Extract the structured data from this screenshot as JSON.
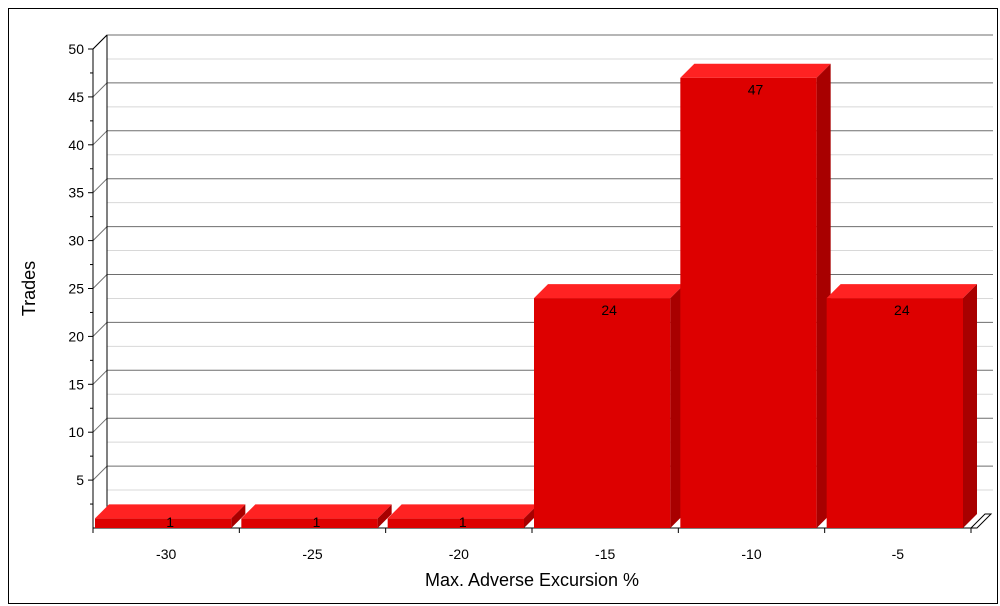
{
  "chart_data": {
    "type": "bar",
    "title": "",
    "xlabel": "Max. Adverse Excursion %",
    "ylabel": "Trades",
    "categories": [
      "-30",
      "-25",
      "-20",
      "-15",
      "-10",
      "-5"
    ],
    "values": [
      1,
      1,
      1,
      24,
      47,
      24
    ],
    "ylim": [
      0,
      50
    ],
    "yticks": [
      5,
      10,
      15,
      20,
      25,
      30,
      35,
      40,
      45,
      50
    ],
    "grid": true,
    "style": "3d",
    "colors": {
      "bar_front": "#dd0000",
      "bar_top": "#ff2222",
      "bar_side": "#a80000",
      "grid_major": "#6e6e6e",
      "grid_minor": "#d8d8d8"
    }
  }
}
